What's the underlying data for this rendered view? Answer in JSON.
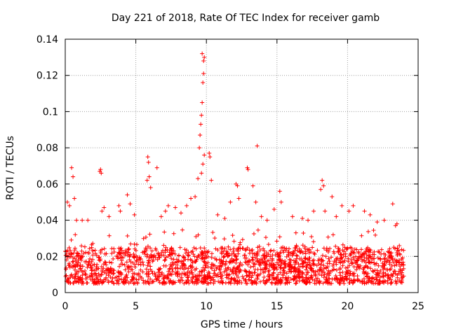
{
  "chart_data": {
    "type": "scatter",
    "title": "Day 221 of 2018, Rate Of TEC Index for receiver gamb",
    "xlabel": "GPS time / hours",
    "ylabel": "ROTI / TECUs",
    "xlim": [
      0,
      25
    ],
    "ylim": [
      0,
      0.14
    ],
    "x_ticks": [
      "0",
      "5",
      "10",
      "15",
      "20",
      "25"
    ],
    "y_ticks": [
      "0",
      "0.02",
      "0.04",
      "0.06",
      "0.08",
      "0.1",
      "0.12",
      "0.14"
    ],
    "grid": true,
    "marker": "+",
    "color": "#ff0000",
    "background_band": {
      "x_range": [
        0,
        24
      ],
      "y_range": [
        0.005,
        0.025
      ],
      "note": "dense cloud of points"
    },
    "series": [
      {
        "name": "ROTI",
        "x": [
          0.15,
          0.3,
          0.45,
          0.55,
          0.65,
          0.8,
          2.45,
          2.5,
          2.55,
          2.6,
          2.75,
          3.8,
          3.9,
          4.4,
          4.6,
          5.8,
          5.85,
          5.9,
          5.95,
          6.05,
          6.5,
          7.3,
          7.8,
          8.6,
          8.9,
          9.2,
          9.4,
          9.5,
          9.55,
          9.6,
          9.65,
          9.7,
          9.75,
          9.8,
          9.85,
          9.7,
          9.8,
          9.65,
          9.75,
          9.85,
          10.2,
          10.25,
          10.35,
          11.7,
          12.1,
          12.2,
          12.3,
          12.9,
          12.95,
          13.3,
          13.5,
          13.6,
          14.8,
          15.2,
          15.3,
          16.1,
          17.6,
          18.1,
          18.2,
          18.3,
          18.4,
          18.9,
          19.6,
          20.1,
          20.4,
          21.2,
          22.6,
          23.2,
          23.4,
          23.5,
          1.2,
          1.6,
          3.1,
          4.9,
          6.8,
          7.1,
          8.2,
          10.8,
          11.3,
          13.9,
          14.3,
          16.8,
          17.2,
          19.2,
          21.6,
          22.1
        ],
        "y": [
          0.05,
          0.048,
          0.069,
          0.064,
          0.052,
          0.04,
          0.067,
          0.068,
          0.066,
          0.045,
          0.047,
          0.048,
          0.045,
          0.054,
          0.049,
          0.062,
          0.075,
          0.072,
          0.064,
          0.058,
          0.069,
          0.048,
          0.047,
          0.048,
          0.052,
          0.053,
          0.063,
          0.08,
          0.087,
          0.093,
          0.098,
          0.105,
          0.116,
          0.121,
          0.13,
          0.132,
          0.128,
          0.066,
          0.071,
          0.076,
          0.077,
          0.075,
          0.062,
          0.05,
          0.06,
          0.059,
          0.052,
          0.069,
          0.068,
          0.059,
          0.05,
          0.081,
          0.046,
          0.056,
          0.05,
          0.042,
          0.045,
          0.057,
          0.062,
          0.059,
          0.045,
          0.053,
          0.048,
          0.045,
          0.048,
          0.045,
          0.04,
          0.049,
          0.037,
          0.038,
          0.04,
          0.04,
          0.042,
          0.043,
          0.042,
          0.045,
          0.044,
          0.043,
          0.041,
          0.042,
          0.04,
          0.041,
          0.04,
          0.042,
          0.043,
          0.039
        ]
      }
    ]
  }
}
